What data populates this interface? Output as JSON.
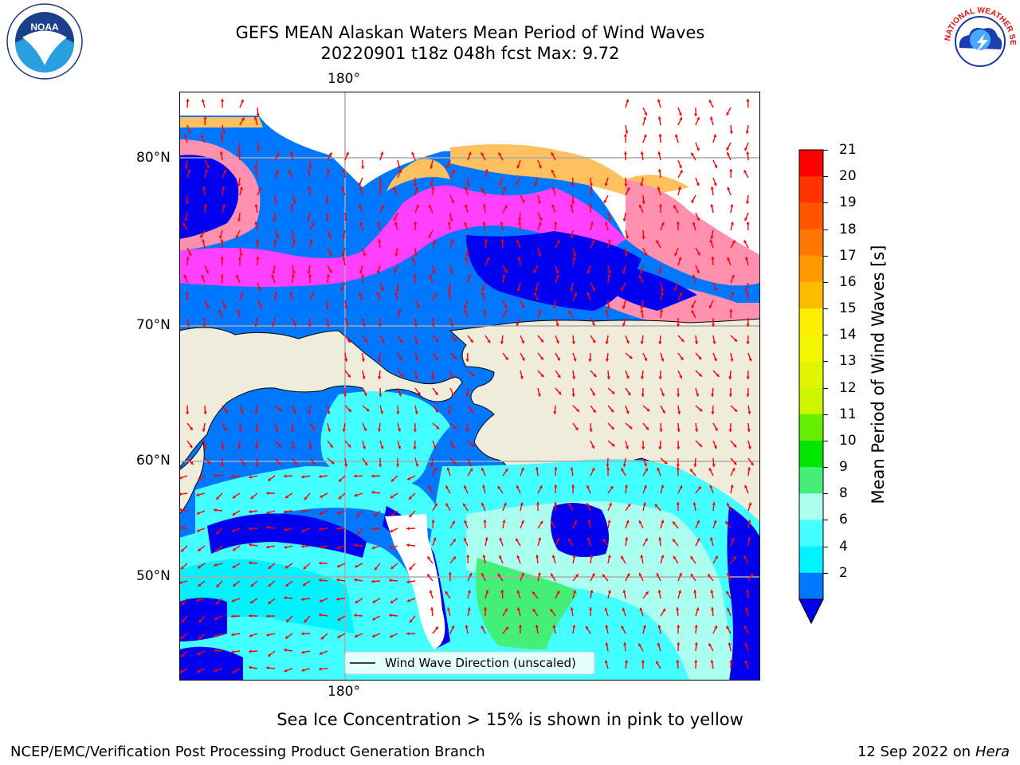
{
  "header": {
    "title_line1": "GEFS MEAN Alaskan Waters Mean Period of Wind Waves",
    "title_line2": "20220901 t18z 048h fcst   Max: 9.72"
  },
  "map": {
    "lon_label_top": "180°",
    "lon_label_bottom": "180°",
    "lat_labels": [
      "80°N",
      "70°N",
      "60°N",
      "50°N"
    ],
    "legend_text": "Wind Wave Direction (unscaled)",
    "arrow_color": "#ff0000",
    "land_color": "#efecdc",
    "ice_colors": [
      "#ff40ff",
      "#ff90b0",
      "#ffc060",
      "#ffe070"
    ]
  },
  "colorbar": {
    "label": "Mean Period of Wind Waves [s]",
    "ticks": [
      "21",
      "20",
      "19",
      "18",
      "17",
      "16",
      "15",
      "14",
      "13",
      "12",
      "11",
      "10",
      "9",
      "8",
      "6",
      "4",
      "2"
    ],
    "colors": [
      "#ff0000",
      "#ff3300",
      "#ff5500",
      "#ff7700",
      "#ff9900",
      "#ffbb00",
      "#ffee00",
      "#f5f500",
      "#e2f500",
      "#cdf500",
      "#66ee00",
      "#00e600",
      "#44ee77",
      "#aaffee",
      "#44ffff",
      "#00f2ff",
      "#0077ff"
    ],
    "extend_color": "#0000ee"
  },
  "footer": {
    "ice_note": "Sea Ice Concentration > 15% is shown in pink to yellow",
    "org": "NCEP/EMC/Verification Post Processing Product Generation Branch",
    "date": "12 Sep 2022 on",
    "machine": "Hera"
  },
  "logos": {
    "noaa_text": "NOAA",
    "nws_text": "NATIONAL WEATHER SERVICE"
  }
}
